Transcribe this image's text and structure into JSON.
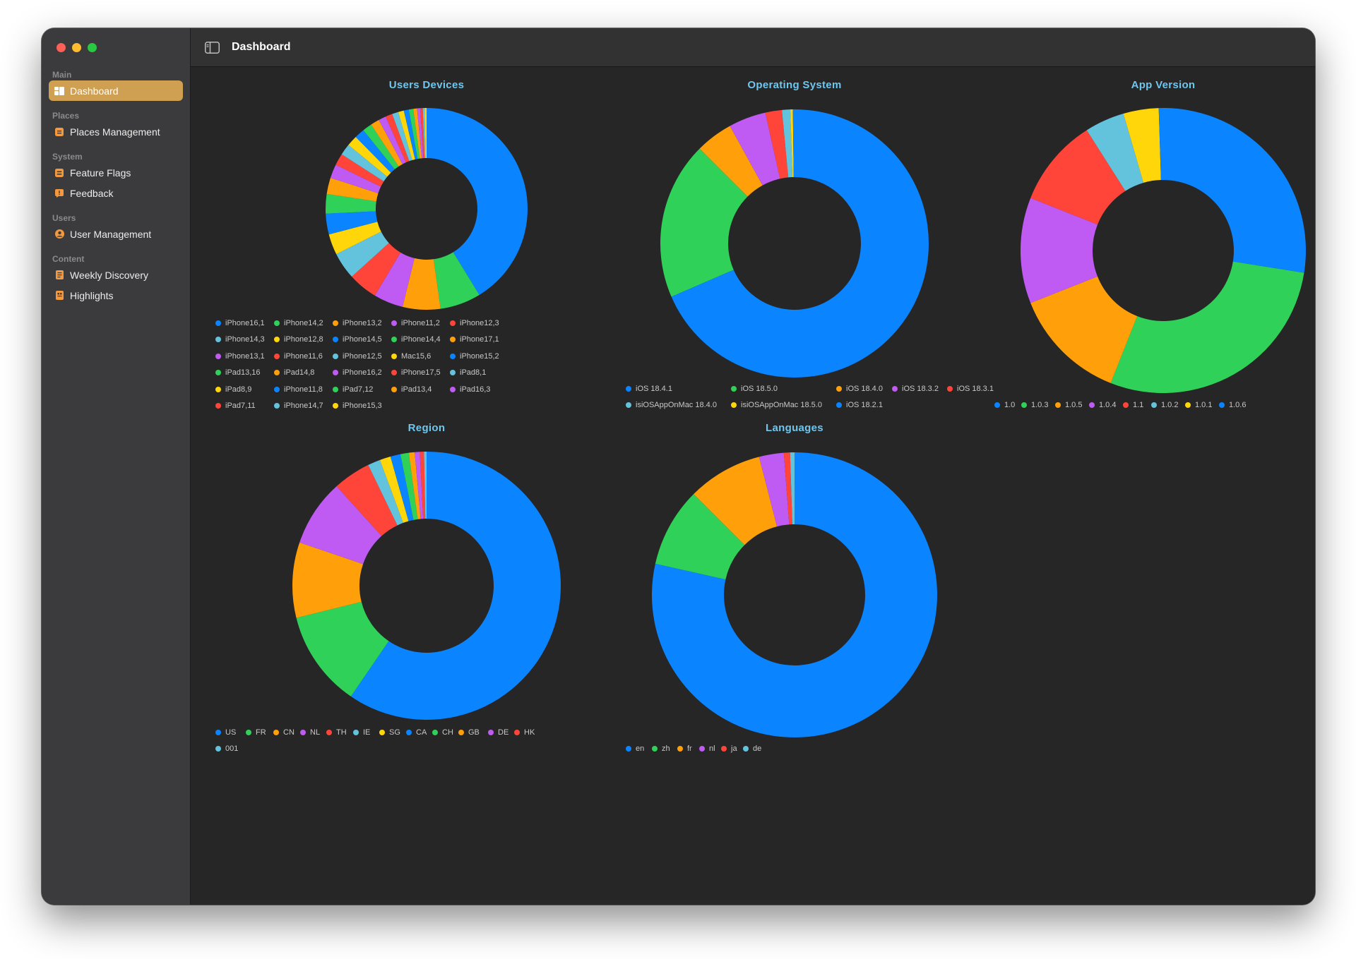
{
  "window": {
    "toolbar_title": "Dashboard"
  },
  "sidebar": {
    "sections": [
      {
        "label": "Main",
        "items": [
          {
            "label": "Dashboard",
            "icon": "dashboard-icon",
            "active": true
          }
        ]
      },
      {
        "label": "Places",
        "items": [
          {
            "label": "Places Management",
            "icon": "places-icon",
            "active": false
          }
        ]
      },
      {
        "label": "System",
        "items": [
          {
            "label": "Feature Flags",
            "icon": "flags-icon",
            "active": false
          },
          {
            "label": "Feedback",
            "icon": "feedback-icon",
            "active": false
          }
        ]
      },
      {
        "label": "Users",
        "items": [
          {
            "label": "User Management",
            "icon": "user-icon",
            "active": false
          }
        ]
      },
      {
        "label": "Content",
        "items": [
          {
            "label": "Weekly Discovery",
            "icon": "document-icon",
            "active": false
          },
          {
            "label": "Highlights",
            "icon": "highlights-icon",
            "active": false
          }
        ]
      }
    ]
  },
  "colors": {
    "blue": "#0a84ff",
    "green": "#30d158",
    "orange": "#ff9f0a",
    "purple": "#bf5af2",
    "red": "#ff453a",
    "teal": "#64c3dc",
    "yellow": "#ffd60a",
    "accent": "#cf9f52",
    "title": "#6fc6ee"
  },
  "chart_data": [
    {
      "type": "pie",
      "title": "Users Devices",
      "donut": true,
      "legend_position": "bottom",
      "categories": [
        "iPhone16,1",
        "iPhone14,2",
        "iPhone13,2",
        "iPhone11,2",
        "iPhone12,3",
        "iPhone14,3",
        "iPhone12,8",
        "iPhone14,5",
        "iPhone14,4",
        "iPhone17,1",
        "iPhone13,1",
        "iPhone11,6",
        "iPhone12,5",
        "Mac15,6",
        "iPhone15,2",
        "iPad13,16",
        "iPad14,8",
        "iPhone16,2",
        "iPhone17,5",
        "iPad8,1",
        "iPad8,9",
        "iPhone11,8",
        "iPad7,12",
        "iPad13,4",
        "iPad16,3",
        "iPad7,11",
        "iPhone14,7",
        "iPhone15,3"
      ],
      "values": [
        41.0,
        6.5,
        6.0,
        4.7,
        4.7,
        4.3,
        3.3,
        3.3,
        3.1,
        2.6,
        2.2,
        1.9,
        1.8,
        1.7,
        1.6,
        1.5,
        1.4,
        1.2,
        1.1,
        1.0,
        0.9,
        0.8,
        0.7,
        0.6,
        0.5,
        0.4,
        0.3,
        0.3
      ],
      "colors": [
        "blue",
        "green",
        "orange",
        "purple",
        "red",
        "teal",
        "yellow",
        "blue",
        "green",
        "orange",
        "purple",
        "red",
        "teal",
        "yellow",
        "blue",
        "green",
        "orange",
        "purple",
        "red",
        "teal",
        "yellow",
        "blue",
        "green",
        "orange",
        "purple",
        "red",
        "teal",
        "yellow"
      ]
    },
    {
      "type": "pie",
      "title": "Operating System",
      "donut": true,
      "legend_position": "bottom",
      "categories": [
        "iOS 18.4.1",
        "iOS 18.5.0",
        "iOS 18.4.0",
        "iOS 18.3.2",
        "iOS 18.3.1",
        "isiOSAppOnMac 18.4.0",
        "isiOSAppOnMac 18.5.0",
        "iOS 18.2.1"
      ],
      "values": [
        68.5,
        19.0,
        4.5,
        4.5,
        2.0,
        1.0,
        0.3,
        0.2
      ],
      "colors": [
        "blue",
        "green",
        "orange",
        "purple",
        "red",
        "teal",
        "yellow",
        "blue"
      ]
    },
    {
      "type": "pie",
      "title": "App Version",
      "donut": true,
      "legend_position": "bottom",
      "categories": [
        "1.0",
        "1.0.3",
        "1.0.5",
        "1.0.4",
        "1.1",
        "1.0.2",
        "1.0.1",
        "1.0.6"
      ],
      "values": [
        27.5,
        28.5,
        13.0,
        12.0,
        10.0,
        4.5,
        4.0,
        0.5
      ],
      "colors": [
        "blue",
        "green",
        "orange",
        "purple",
        "red",
        "teal",
        "yellow",
        "blue"
      ]
    },
    {
      "type": "pie",
      "title": "Region",
      "donut": true,
      "legend_position": "bottom",
      "categories": [
        "US",
        "FR",
        "CN",
        "NL",
        "TH",
        "IE",
        "SG",
        "CA",
        "CH",
        "GB",
        "DE",
        "HK",
        "001"
      ],
      "values": [
        59.0,
        11.5,
        9.0,
        8.0,
        4.5,
        1.5,
        1.3,
        1.2,
        1.0,
        0.7,
        0.6,
        0.5,
        0.3
      ],
      "colors": [
        "blue",
        "green",
        "orange",
        "purple",
        "red",
        "teal",
        "yellow",
        "blue",
        "green",
        "orange",
        "purple",
        "red",
        "teal"
      ]
    },
    {
      "type": "pie",
      "title": "Languages",
      "donut": true,
      "legend_position": "bottom",
      "categories": [
        "en",
        "zh",
        "fr",
        "nl",
        "ja",
        "de"
      ],
      "values": [
        78.5,
        9.0,
        8.5,
        2.8,
        0.7,
        0.5
      ],
      "colors": [
        "blue",
        "green",
        "orange",
        "purple",
        "red",
        "teal"
      ]
    }
  ]
}
